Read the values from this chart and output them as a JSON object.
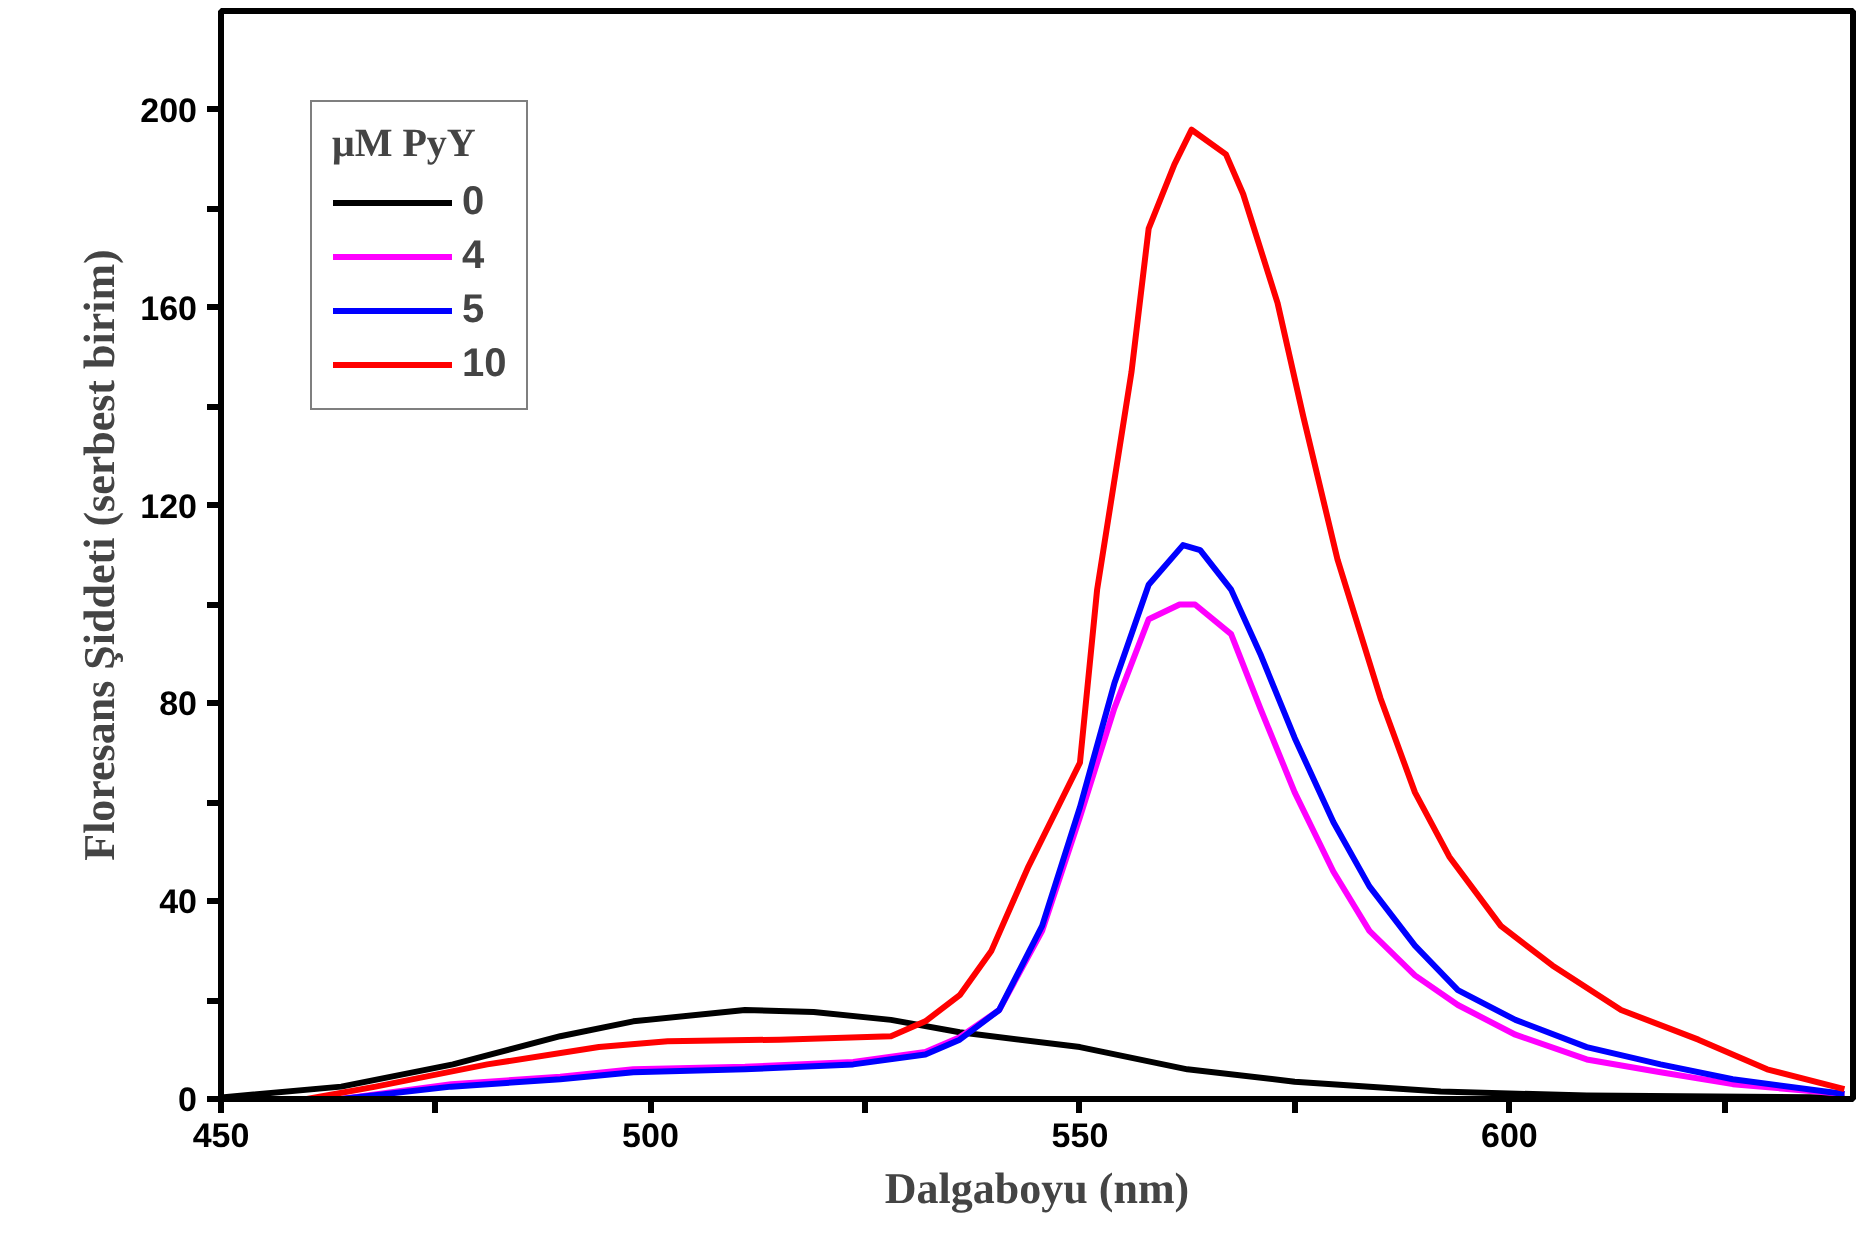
{
  "chart_data": {
    "type": "line",
    "xlabel": "Dalgaboyu (nm)",
    "ylabel": "Floresans Şiddeti (serbest birim)",
    "legend_title": "μM PyY",
    "legend": "top left",
    "grid": false,
    "line_style": "solid",
    "marker": "none",
    "xlim": [
      450,
      640
    ],
    "ylim": [
      0,
      220
    ],
    "xticks": [
      450,
      {
        "value": 475,
        "label": null
      },
      500,
      {
        "value": 525,
        "label": null
      },
      550,
      {
        "value": 575,
        "label": null
      },
      600,
      {
        "value": 625,
        "label": null
      }
    ],
    "yticks": [
      0,
      {
        "value": 20,
        "label": null
      },
      40,
      {
        "value": 60,
        "label": null
      },
      80,
      {
        "value": 100,
        "label": null
      },
      120,
      {
        "value": 140,
        "label": null
      },
      160,
      {
        "value": 180,
        "label": null
      },
      200
    ],
    "series": [
      {
        "name": "0",
        "color": "#000000",
        "x": [
          450,
          464,
          477,
          489.5,
          498,
          511,
          519,
          528,
          536,
          550,
          562.5,
          575,
          592,
          609,
          639
        ],
        "values": [
          0.3,
          2.5,
          7,
          12.7,
          15.7,
          18,
          17.6,
          16,
          13.5,
          10.5,
          6,
          3.5,
          1.5,
          0.7,
          0.3
        ]
      },
      {
        "name": "4",
        "color": "#ff00ff",
        "x": [
          464,
          476.8,
          489.5,
          498,
          511,
          523.6,
          532,
          536,
          540.6,
          545.6,
          550,
          554,
          558,
          561.6,
          563.4,
          567.6,
          571,
          575,
          579.5,
          583.7,
          589,
          594,
          600.7,
          609,
          617.6,
          626,
          639
        ],
        "values": [
          0,
          3,
          4.5,
          6,
          6.5,
          7.5,
          9.5,
          12.5,
          18,
          34,
          57,
          79,
          97,
          100,
          100,
          94,
          79,
          62,
          46,
          34,
          25,
          19,
          13,
          8,
          5.4,
          3,
          1
        ]
      },
      {
        "name": "5",
        "color": "#0000ff",
        "x": [
          464,
          476.8,
          489.5,
          498,
          511,
          523.6,
          532,
          536,
          540.6,
          545.6,
          550,
          554,
          558,
          562,
          564,
          567.6,
          571,
          575,
          579.5,
          583.7,
          589,
          594,
          600.7,
          609,
          617.6,
          626,
          639
        ],
        "values": [
          0,
          2.5,
          4,
          5.4,
          6,
          7,
          9,
          12,
          18,
          35,
          59,
          84,
          104,
          112,
          111,
          103,
          90,
          73,
          56,
          43,
          31,
          22,
          16,
          10.5,
          7,
          4,
          1
        ]
      },
      {
        "name": "10",
        "color": "#ff0000",
        "x": [
          460,
          468,
          481,
          494,
          502,
          515,
          528,
          532,
          536,
          539.7,
          544,
          550,
          552,
          556,
          558,
          561,
          563,
          567,
          569,
          573,
          576,
          580,
          585,
          589,
          593,
          599,
          605,
          613,
          622,
          630,
          639
        ],
        "values": [
          0,
          2.5,
          7,
          10.5,
          11.7,
          12,
          12.7,
          15.7,
          21,
          30,
          47,
          68,
          103,
          147,
          176,
          189,
          196,
          191,
          183,
          161,
          138,
          109,
          81,
          62,
          49,
          35,
          27,
          18,
          12,
          6,
          2
        ]
      }
    ]
  }
}
